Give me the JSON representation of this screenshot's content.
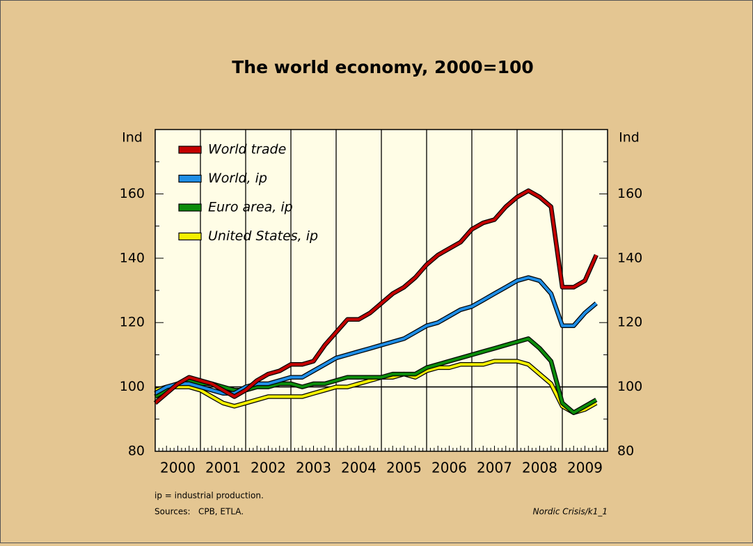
{
  "chart_data": {
    "type": "line",
    "title": "The world economy, 2000=100",
    "ylabel": "Ind",
    "y2label": "Ind",
    "note": "ip = industrial production.",
    "source": "Sources:   CPB, ETLA.",
    "credit": "Nordic Crisis/k1_1",
    "x": [
      2000.0,
      2000.25,
      2000.5,
      2000.75,
      2001.0,
      2001.25,
      2001.5,
      2001.75,
      2002.0,
      2002.25,
      2002.5,
      2002.75,
      2003.0,
      2003.25,
      2003.5,
      2003.75,
      2004.0,
      2004.25,
      2004.5,
      2004.75,
      2005.0,
      2005.25,
      2005.5,
      2005.75,
      2006.0,
      2006.25,
      2006.5,
      2006.75,
      2007.0,
      2007.25,
      2007.5,
      2007.75,
      2008.0,
      2008.25,
      2008.5,
      2008.75,
      2009.0,
      2009.25,
      2009.5,
      2009.75
    ],
    "series": [
      {
        "name": "World trade",
        "color": "#c40000",
        "values": [
          95,
          98,
          101,
          103,
          102,
          101,
          99,
          97,
          99,
          102,
          104,
          105,
          107,
          107,
          108,
          113,
          117,
          121,
          121,
          123,
          126,
          129,
          131,
          134,
          138,
          141,
          143,
          145,
          149,
          151,
          152,
          156,
          159,
          161,
          159,
          156,
          131,
          131,
          133,
          141
        ]
      },
      {
        "name": "World, ip",
        "color": "#1f8ee6",
        "values": [
          98,
          100,
          101,
          101,
          100,
          99,
          98,
          98,
          100,
          101,
          101,
          102,
          103,
          103,
          105,
          107,
          109,
          110,
          111,
          112,
          113,
          114,
          115,
          117,
          119,
          120,
          122,
          124,
          125,
          127,
          129,
          131,
          133,
          134,
          133,
          129,
          119,
          119,
          123,
          126
        ]
      },
      {
        "name": "Euro area, ip",
        "color": "#0b8c0b",
        "values": [
          97,
          99,
          101,
          102,
          101,
          101,
          100,
          99,
          99,
          100,
          100,
          101,
          101,
          100,
          101,
          101,
          102,
          103,
          103,
          103,
          103,
          104,
          104,
          104,
          106,
          107,
          108,
          109,
          110,
          111,
          112,
          113,
          114,
          115,
          112,
          108,
          95,
          92,
          94,
          96
        ]
      },
      {
        "name": "United States, ip",
        "color": "#f4f000",
        "values": [
          99,
          100,
          100,
          100,
          99,
          97,
          95,
          94,
          95,
          96,
          97,
          97,
          97,
          97,
          98,
          99,
          100,
          100,
          101,
          102,
          103,
          103,
          104,
          103,
          105,
          106,
          106,
          107,
          107,
          107,
          108,
          108,
          108,
          107,
          104,
          101,
          94,
          92,
          93,
          95
        ]
      }
    ],
    "xlim": [
      2000,
      2010
    ],
    "xticks": [
      {
        "value": 2000.5,
        "label": "2000"
      },
      {
        "value": 2001.5,
        "label": "2001"
      },
      {
        "value": 2002.5,
        "label": "2002"
      },
      {
        "value": 2003.5,
        "label": "2003"
      },
      {
        "value": 2004.5,
        "label": "2004"
      },
      {
        "value": 2005.5,
        "label": "2005"
      },
      {
        "value": 2006.5,
        "label": "2006"
      },
      {
        "value": 2007.5,
        "label": "2007"
      },
      {
        "value": 2008.5,
        "label": "2008"
      },
      {
        "value": 2009.5,
        "label": "2009"
      }
    ],
    "xgrid": [
      2001,
      2002,
      2003,
      2004,
      2005,
      2006,
      2007,
      2008,
      2009
    ],
    "ylim": [
      80,
      180
    ],
    "yticks": [
      80,
      100,
      120,
      140,
      160
    ],
    "hline": 100,
    "legend": "upper left"
  }
}
